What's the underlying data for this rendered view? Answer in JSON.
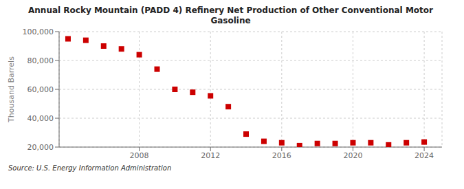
{
  "chart_data": {
    "type": "scatter",
    "title": "Annual Rocky Mountain (PADD 4) Refinery Net Production of Other Conventional Motor\nGasoline",
    "y_label": "Thousand Barrels",
    "annotations": [
      "Source: U.S. Energy Information Administration"
    ],
    "x": [
      2004,
      2005,
      2006,
      2007,
      2008,
      2009,
      2010,
      2011,
      2012,
      2013,
      2014,
      2015,
      2016,
      2017,
      2018,
      2019,
      2020,
      2021,
      2022,
      2023,
      2024
    ],
    "values": [
      95000,
      94000,
      90000,
      88000,
      84000,
      74000,
      60000,
      58000,
      55500,
      48000,
      29000,
      24000,
      23000,
      21000,
      22500,
      22500,
      23000,
      23000,
      21500,
      23000,
      23500
    ],
    "color": "#cc0000",
    "marker": "square",
    "xlim": [
      2003.5,
      2025
    ],
    "ylim": [
      20000,
      100000
    ],
    "xticks": [
      2008,
      2012,
      2016,
      2020,
      2024
    ],
    "yticks": [
      {
        "value": 20000,
        "label": "20,000"
      },
      {
        "value": 40000,
        "label": "40,000"
      },
      {
        "value": 60000,
        "label": "60,000"
      },
      {
        "value": 80000,
        "label": "80,000"
      },
      {
        "value": 100000,
        "label": "100,000"
      }
    ],
    "grid": true
  }
}
